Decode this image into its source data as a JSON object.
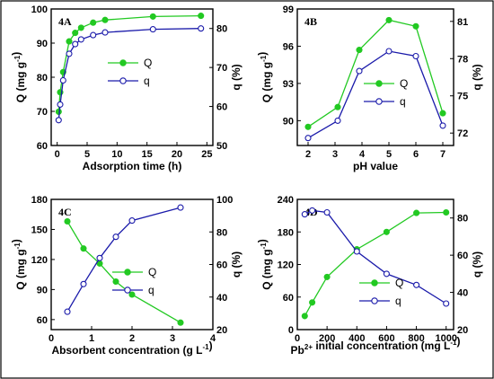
{
  "chart_data": [
    {
      "type": "line",
      "panel_label": "4A",
      "xlabel": "Adsorption time (h)",
      "ylabel_left": "Q (mg g^-1)",
      "ylabel_right": "q (%)",
      "xlim": [
        -1,
        26
      ],
      "ylim_left": [
        60,
        100
      ],
      "ylim_right": [
        50,
        85
      ],
      "xticks": [
        0,
        5,
        10,
        15,
        20,
        25
      ],
      "yticks_left": [
        60,
        70,
        80,
        90,
        100
      ],
      "yticks_right": [
        50,
        60,
        70,
        80
      ],
      "legend_position": "middle-right",
      "series": [
        {
          "name": "Q",
          "axis": "left",
          "color": "#22c922",
          "marker": "filled-circle",
          "x": [
            0.25,
            0.5,
            1,
            2,
            3,
            4,
            6,
            8,
            16,
            24
          ],
          "y": [
            69.9,
            75.6,
            81.5,
            90.5,
            93,
            94.5,
            96,
            96.8,
            97.8,
            98
          ]
        },
        {
          "name": "q",
          "axis": "right",
          "color": "#1a1aaa",
          "marker": "open-circle",
          "x": [
            0.25,
            0.5,
            1,
            2,
            3,
            4,
            6,
            8,
            16,
            24
          ],
          "y": [
            56.5,
            60.5,
            66.7,
            73.5,
            76,
            77.2,
            78.3,
            79,
            79.8,
            80
          ]
        }
      ]
    },
    {
      "type": "line",
      "panel_label": "4B",
      "xlabel": "pH value",
      "ylabel_left": "Q (mg g^-1)",
      "ylabel_right": "q (%)",
      "xlim": [
        1.6,
        7.4
      ],
      "ylim_left": [
        88,
        99
      ],
      "ylim_right": [
        71,
        82
      ],
      "xticks": [
        2,
        3,
        4,
        5,
        6,
        7
      ],
      "yticks_left": [
        90,
        93,
        96,
        99
      ],
      "yticks_right": [
        72,
        75,
        78,
        81
      ],
      "legend_position": "center",
      "series": [
        {
          "name": "Q",
          "axis": "left",
          "color": "#22c922",
          "marker": "filled-circle",
          "x": [
            2,
            3.1,
            3.9,
            5,
            6,
            7
          ],
          "y": [
            89.5,
            91.1,
            95.7,
            98.1,
            97.6,
            90.6
          ]
        },
        {
          "name": "q",
          "axis": "right",
          "color": "#1a1aaa",
          "marker": "open-circle",
          "x": [
            2,
            3.1,
            3.9,
            5,
            6,
            7
          ],
          "y": [
            71.6,
            73,
            77,
            78.6,
            78.2,
            72.6
          ]
        }
      ]
    },
    {
      "type": "line",
      "panel_label": "4C",
      "xlabel": "Absorbent concentration (g L^-1)",
      "ylabel_left": "Q (mg g^-1)",
      "ylabel_right": "q (%)",
      "xlim": [
        0,
        4
      ],
      "ylim_left": [
        50,
        180
      ],
      "ylim_right": [
        20,
        100
      ],
      "xticks": [
        0,
        1,
        2,
        3,
        4
      ],
      "yticks_left": [
        60,
        90,
        120,
        150,
        180
      ],
      "yticks_right": [
        20,
        40,
        60,
        80,
        100
      ],
      "legend_position": "middle-right",
      "series": [
        {
          "name": "Q",
          "axis": "left",
          "color": "#22c922",
          "marker": "filled-circle",
          "x": [
            0.4,
            0.8,
            1.2,
            1.6,
            2.0,
            3.2
          ],
          "y": [
            158,
            131,
            116,
            98,
            85,
            57
          ]
        },
        {
          "name": "q",
          "axis": "right",
          "color": "#1a1aaa",
          "marker": "open-circle",
          "x": [
            0.4,
            0.8,
            1.2,
            1.6,
            2.0,
            3.2
          ],
          "y": [
            31,
            48,
            64,
            77,
            87,
            95
          ]
        }
      ]
    },
    {
      "type": "line",
      "panel_label": "4D",
      "xlabel": "Pb2+ initial concentration (mg L^-1)",
      "ylabel_left": "Q (mg g^-1)",
      "ylabel_right": "q (%)",
      "xlim": [
        0,
        1050
      ],
      "ylim_left": [
        0,
        240
      ],
      "ylim_right": [
        20,
        90
      ],
      "xticks": [
        0,
        200,
        400,
        600,
        800,
        1000
      ],
      "yticks_left": [
        0,
        60,
        120,
        180,
        240
      ],
      "yticks_right": [
        20,
        40,
        60,
        80
      ],
      "legend_position": "center",
      "series": [
        {
          "name": "Q",
          "axis": "left",
          "color": "#22c922",
          "marker": "filled-circle",
          "x": [
            50,
            100,
            200,
            400,
            600,
            800,
            1000
          ],
          "y": [
            25,
            50,
            97,
            148,
            180,
            215,
            216
          ]
        },
        {
          "name": "q",
          "axis": "right",
          "color": "#1a1aaa",
          "marker": "open-circle",
          "x": [
            50,
            100,
            200,
            400,
            600,
            800,
            1000
          ],
          "y": [
            82,
            84,
            83,
            62,
            50,
            44,
            34
          ]
        }
      ]
    }
  ]
}
